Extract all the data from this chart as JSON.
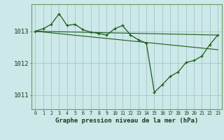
{
  "background_color": "#cce8e8",
  "grid_color": "#aacccc",
  "line_color": "#1a5c1a",
  "title": "Graphe pression niveau de la mer (hPa)",
  "ylabel_ticks": [
    1011,
    1012,
    1013
  ],
  "xlim": [
    -0.5,
    23.5
  ],
  "ylim": [
    1010.55,
    1013.85
  ],
  "hours": [
    0,
    1,
    2,
    3,
    4,
    5,
    6,
    7,
    8,
    9,
    10,
    11,
    12,
    13,
    14,
    15,
    16,
    17,
    18,
    19,
    20,
    21,
    22,
    23
  ],
  "series1": [
    1013.0,
    1013.08,
    1013.22,
    1013.55,
    1013.18,
    1013.22,
    1013.05,
    1012.97,
    1012.93,
    1012.88,
    1013.08,
    1013.18,
    1012.88,
    1012.73,
    1012.62,
    1011.08,
    1011.32,
    1011.58,
    1011.72,
    1012.02,
    1012.08,
    1012.22,
    1012.58,
    1012.88
  ],
  "series2_x": [
    0,
    23
  ],
  "series2_y": [
    1013.0,
    1012.42
  ],
  "series3_x": [
    0,
    23
  ],
  "series3_y": [
    1013.0,
    1012.88
  ]
}
